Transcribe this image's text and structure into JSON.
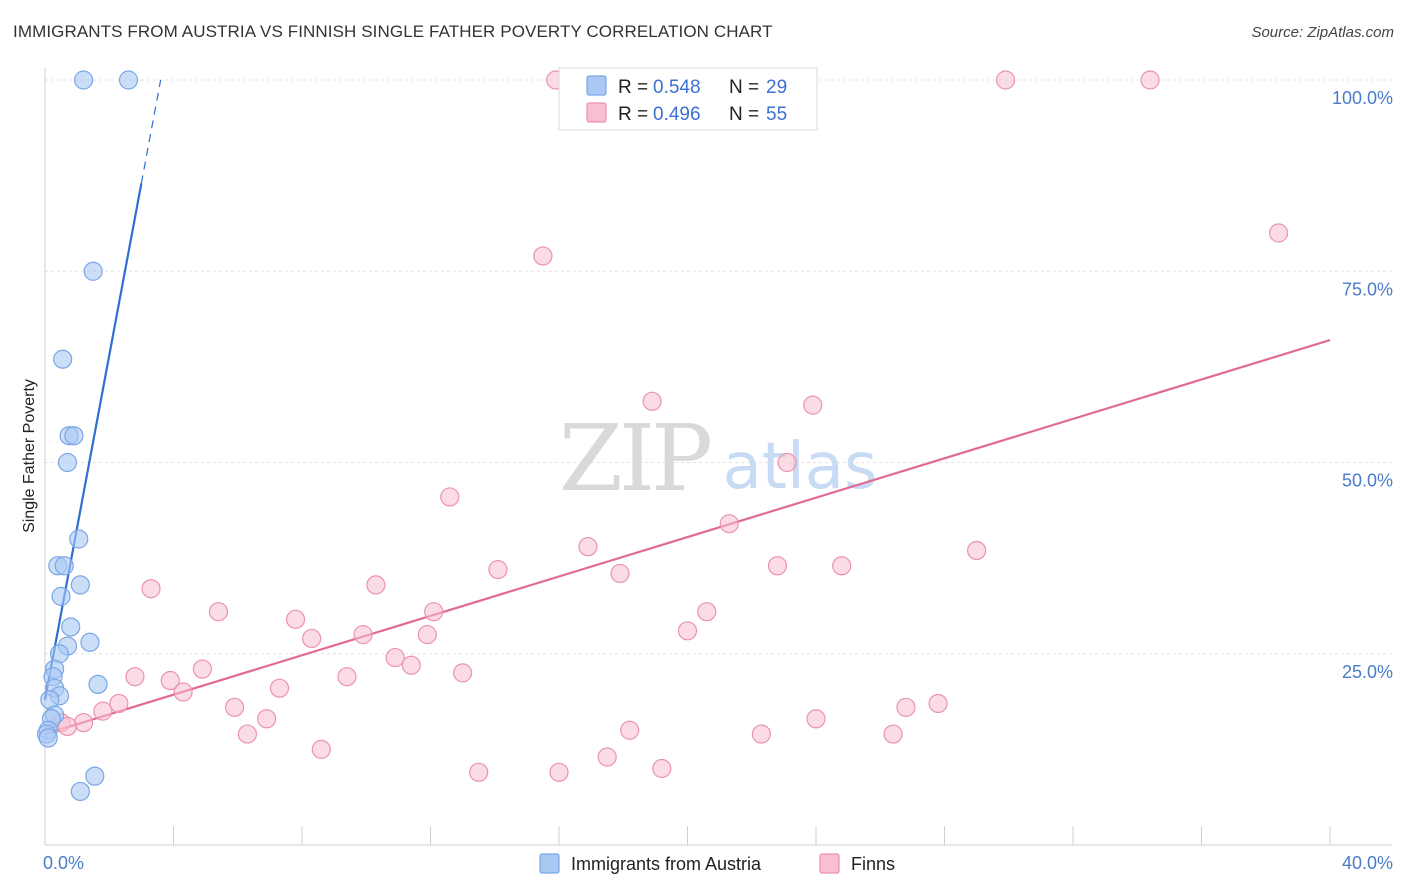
{
  "title": "IMMIGRANTS FROM AUSTRIA VS FINNISH SINGLE FATHER POVERTY CORRELATION CHART",
  "source": "Source: ZipAtlas.com",
  "watermark": {
    "zip": "ZIP",
    "atlas": "atlas"
  },
  "colors": {
    "blue_fill": "#a9c8f3",
    "blue_stroke": "#7aa6e6",
    "blue_line": "#2f6fd0",
    "pink_fill": "#f7bfd0",
    "pink_stroke": "#ea93ae",
    "pink_line": "#e06b96",
    "grid": "#e2e2e2",
    "tick_label": "#4a7cc9"
  },
  "legend": {
    "rows": [
      {
        "r_label": "R =",
        "r_value": "0.548",
        "n_label": "N =",
        "n_value": "29",
        "series": "blue"
      },
      {
        "r_label": "R =",
        "r_value": "0.496",
        "n_label": "N =",
        "n_value": "55",
        "series": "pink"
      }
    ]
  },
  "chart_data": {
    "type": "scatter",
    "title": "IMMIGRANTS FROM AUSTRIA VS FINNISH SINGLE FATHER POVERTY CORRELATION CHART",
    "xlabel": "",
    "ylabel": "Single Father Poverty",
    "xlim": [
      0,
      40
    ],
    "ylim": [
      0,
      102
    ],
    "x_tick_labels": [
      {
        "value": 0,
        "label": "0.0%"
      },
      {
        "value": 40,
        "label": "40.0%"
      }
    ],
    "y_tick_labels": [
      {
        "value": 25,
        "label": "25.0%"
      },
      {
        "value": 50,
        "label": "50.0%"
      },
      {
        "value": 75,
        "label": "75.0%"
      },
      {
        "value": 100,
        "label": "100.0%"
      }
    ],
    "grid": true,
    "legend_position": "bottom-center",
    "series": [
      {
        "name": "Immigrants from Austria",
        "color": "blue",
        "points": [
          [
            1.2,
            100
          ],
          [
            2.6,
            100
          ],
          [
            1.5,
            75
          ],
          [
            0.55,
            63.5
          ],
          [
            0.75,
            53.5
          ],
          [
            0.9,
            53.5
          ],
          [
            0.7,
            50
          ],
          [
            1.05,
            40
          ],
          [
            0.4,
            36.5
          ],
          [
            0.6,
            36.5
          ],
          [
            1.1,
            34
          ],
          [
            0.5,
            32.5
          ],
          [
            0.8,
            28.5
          ],
          [
            1.4,
            26.5
          ],
          [
            0.7,
            26
          ],
          [
            0.45,
            25
          ],
          [
            0.3,
            23
          ],
          [
            0.25,
            22
          ],
          [
            0.3,
            20.5
          ],
          [
            0.45,
            19.5
          ],
          [
            0.15,
            19
          ],
          [
            1.65,
            21
          ],
          [
            0.3,
            17
          ],
          [
            0.2,
            16.5
          ],
          [
            0.1,
            15
          ],
          [
            0.05,
            14.5
          ],
          [
            0.1,
            14
          ],
          [
            1.55,
            9
          ],
          [
            1.1,
            7
          ]
        ],
        "trend": {
          "x": [
            0,
            3.6
          ],
          "y": [
            19,
            100
          ],
          "solid_until_x": 3.0
        }
      },
      {
        "name": "Finns",
        "color": "pink",
        "points": [
          [
            15.9,
            100
          ],
          [
            21.9,
            100
          ],
          [
            29.9,
            100
          ],
          [
            34.4,
            100
          ],
          [
            38.4,
            80
          ],
          [
            15.5,
            77
          ],
          [
            18.9,
            58
          ],
          [
            23.9,
            57.5
          ],
          [
            23.1,
            50
          ],
          [
            12.6,
            45.5
          ],
          [
            21.3,
            42
          ],
          [
            29.0,
            38.5
          ],
          [
            16.9,
            39
          ],
          [
            14.1,
            36
          ],
          [
            17.9,
            35.5
          ],
          [
            22.8,
            36.5
          ],
          [
            24.8,
            36.5
          ],
          [
            3.3,
            33.5
          ],
          [
            10.3,
            34
          ],
          [
            5.4,
            30.5
          ],
          [
            12.1,
            30.5
          ],
          [
            20.6,
            30.5
          ],
          [
            7.8,
            29.5
          ],
          [
            20.0,
            28
          ],
          [
            8.3,
            27
          ],
          [
            9.9,
            27.5
          ],
          [
            11.9,
            27.5
          ],
          [
            10.9,
            24.5
          ],
          [
            11.4,
            23.5
          ],
          [
            13.0,
            22.5
          ],
          [
            4.9,
            23
          ],
          [
            2.8,
            22
          ],
          [
            3.9,
            21.5
          ],
          [
            9.4,
            22
          ],
          [
            4.3,
            20
          ],
          [
            7.3,
            20.5
          ],
          [
            2.3,
            18.5
          ],
          [
            5.9,
            18
          ],
          [
            1.8,
            17.5
          ],
          [
            26.8,
            18
          ],
          [
            27.8,
            18.5
          ],
          [
            6.9,
            16.5
          ],
          [
            24.0,
            16.5
          ],
          [
            1.2,
            16
          ],
          [
            0.5,
            16
          ],
          [
            0.7,
            15.5
          ],
          [
            18.2,
            15
          ],
          [
            6.3,
            14.5
          ],
          [
            22.3,
            14.5
          ],
          [
            26.4,
            14.5
          ],
          [
            8.6,
            12.5
          ],
          [
            17.5,
            11.5
          ],
          [
            13.5,
            9.5
          ],
          [
            16.0,
            9.5
          ],
          [
            19.2,
            10
          ]
        ],
        "trend": {
          "x": [
            0,
            40
          ],
          "y": [
            14.5,
            66
          ]
        }
      }
    ]
  },
  "bottom_legend": {
    "items": [
      {
        "label": "Immigrants from Austria",
        "series": "blue"
      },
      {
        "label": "Finns",
        "series": "pink"
      }
    ]
  }
}
